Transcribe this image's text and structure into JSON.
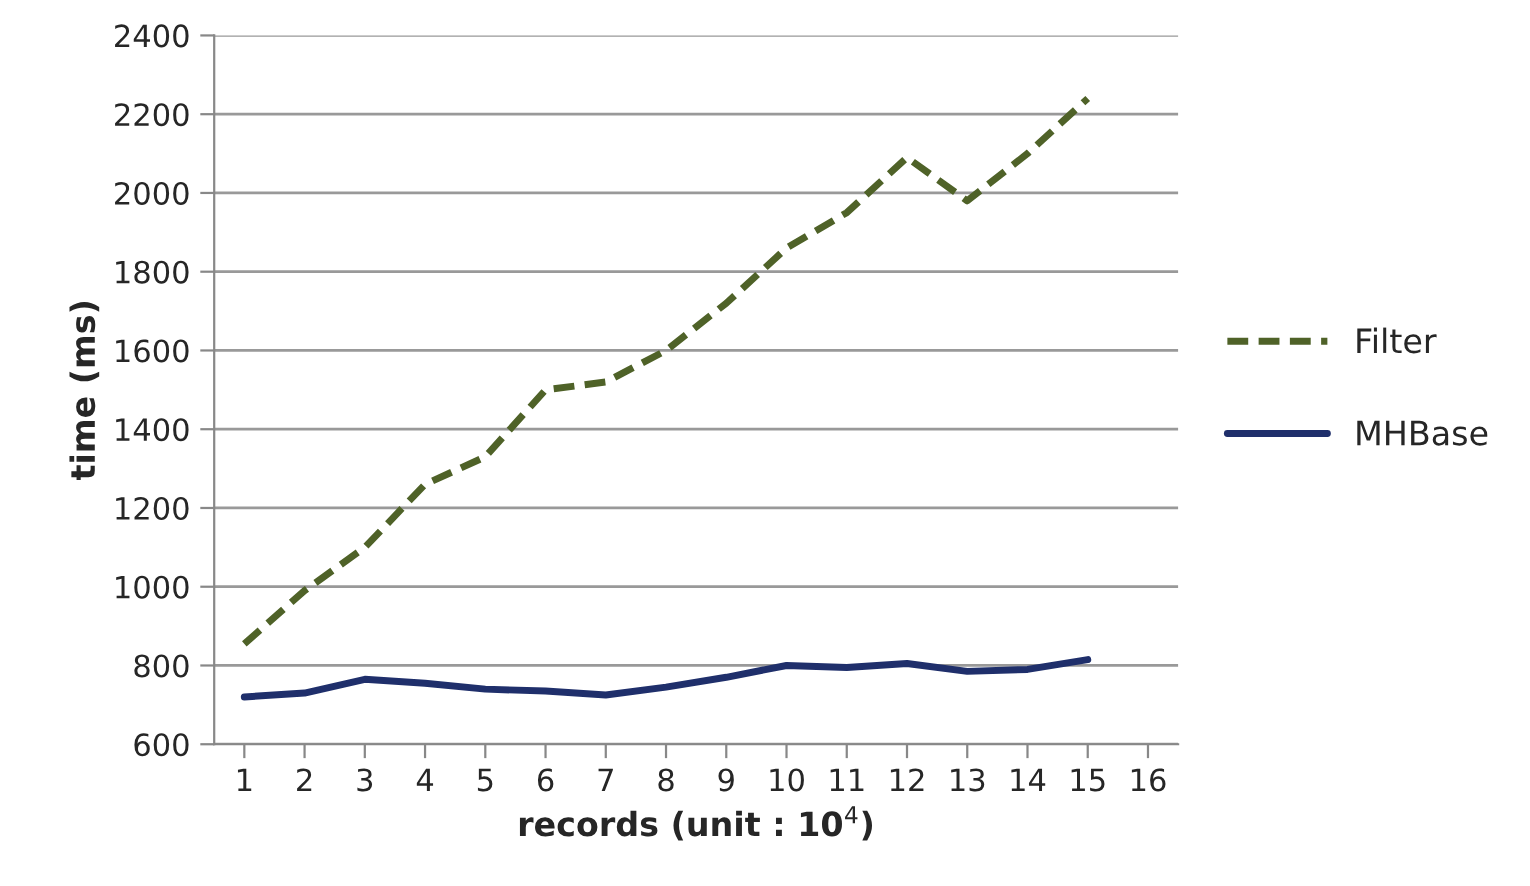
{
  "chart_data": {
    "type": "line",
    "xlabel": "records (unit : 10$^{4}$)",
    "ylabel": "time (ms)",
    "categories": [
      "1",
      "2",
      "3",
      "4",
      "5",
      "6",
      "7",
      "8",
      "9",
      "10",
      "11",
      "12",
      "13",
      "14",
      "15",
      "16"
    ],
    "series": [
      {
        "name": "Filter",
        "color": "#4f6228",
        "line_style": "dashed",
        "values": [
          855,
          990,
          1100,
          1260,
          1330,
          1500,
          1520,
          1600,
          1720,
          1860,
          1950,
          2090,
          1980,
          2100,
          2240,
          null
        ]
      },
      {
        "name": "MHBase",
        "color": "#1f2f6b",
        "line_style": "solid",
        "values": [
          720,
          730,
          765,
          755,
          740,
          735,
          725,
          745,
          770,
          800,
          795,
          805,
          785,
          790,
          815,
          null
        ]
      }
    ],
    "ylim": [
      600,
      2400
    ],
    "yticks": [
      600,
      800,
      1000,
      1200,
      1400,
      1600,
      1800,
      2000,
      2200,
      2400
    ],
    "grid": "y",
    "legend": "right",
    "marker": "none"
  }
}
